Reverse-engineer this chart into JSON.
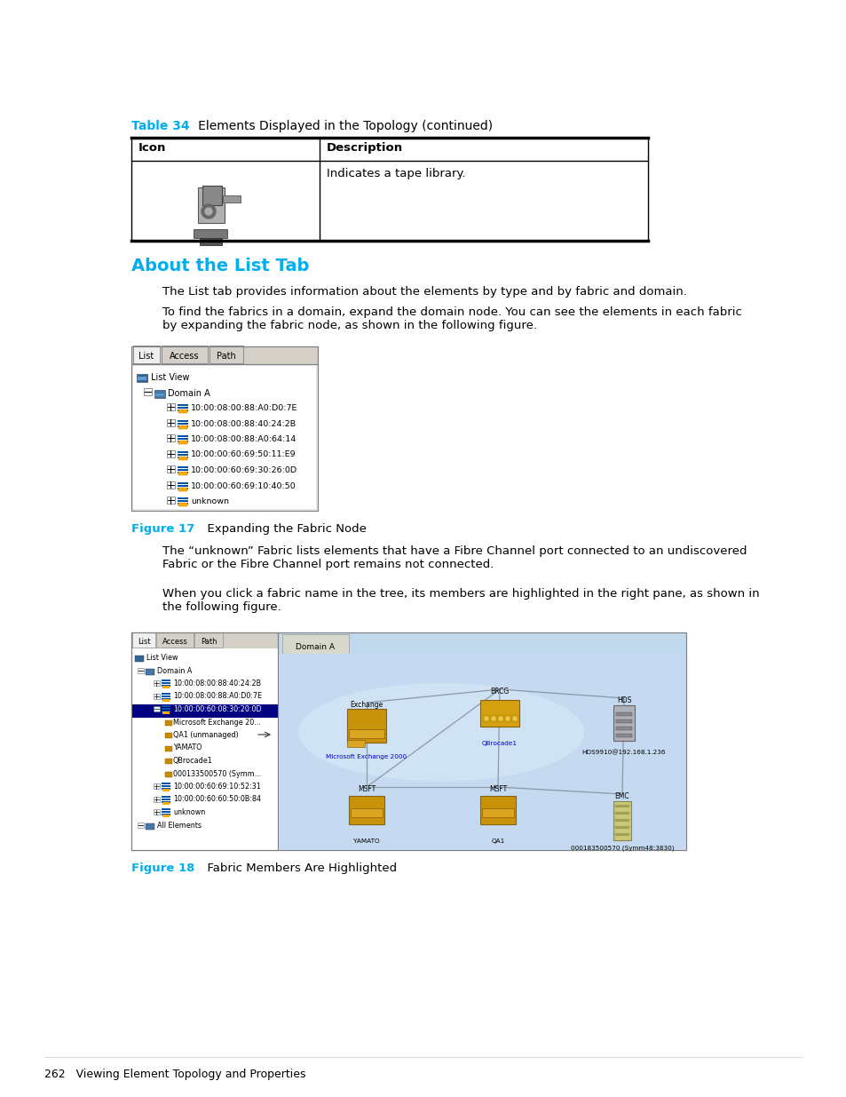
{
  "bg_color": "#ffffff",
  "cyan": "#00AEEF",
  "black": "#000000",
  "table_label": "Table 34",
  "table_title": "   Elements Displayed in the Topology (continued)",
  "table_header_icon": "Icon",
  "table_header_desc": "Description",
  "table_row_desc": "Indicates a tape library.",
  "section_title": "About the List Tab",
  "para1": "The List tab provides information about the elements by type and by fabric and domain.",
  "para2": "To find the fabrics in a domain, expand the domain node. You can see the elements in each fabric\nby expanding the fabric node, as shown in the following figure.",
  "fig17_caption_label": "Figure 17",
  "fig17_caption": "  Expanding the Fabric Node",
  "para3": "The “unknown” Fabric lists elements that have a Fibre Channel port connected to an undiscovered\nFabric or the Fibre Channel port remains not connected.",
  "para4": "When you click a fabric name in the tree, its members are highlighted in the right pane, as shown in\nthe following figure.",
  "fig18_caption_label": "Figure 18",
  "fig18_caption": "  Fabric Members Are Highlighted",
  "footer_text": "262   Viewing Element Topology and Properties",
  "tree17_items": [
    [
      0,
      "List View"
    ],
    [
      1,
      "Domain A"
    ],
    [
      2,
      "10:00:08:00:88:A0:D0:7E"
    ],
    [
      2,
      "10:00:08:00:88:40:24:2B"
    ],
    [
      2,
      "10:00:08:00:88:A0:64:14"
    ],
    [
      2,
      "10:00:00:60:69:50:11:E9"
    ],
    [
      2,
      "10:00:00:60:69:30:26:0D"
    ],
    [
      2,
      "10:00:00:60:69:10:40:50"
    ],
    [
      2,
      "unknown"
    ]
  ],
  "tree18_items": [
    [
      0,
      "List View",
      false
    ],
    [
      1,
      "Domain A",
      false
    ],
    [
      2,
      "10:00:08:00:88:40:24:2B",
      false
    ],
    [
      2,
      "10:00:08:00:88:A0:D0:7E",
      false
    ],
    [
      2,
      "10:00:00:60:08:30:20:0D",
      true
    ],
    [
      3,
      "Microsoft Exchange 20...",
      false
    ],
    [
      3,
      "QA1 (unmanaged)",
      false
    ],
    [
      3,
      "YAMATO",
      false
    ],
    [
      3,
      "QBrocade1",
      false
    ],
    [
      3,
      "000133500570 (Symm...",
      false
    ],
    [
      2,
      "10:00:00:60:69:10:52:31",
      false
    ],
    [
      2,
      "10:00:00:60:60:50:0B:84",
      false
    ],
    [
      2,
      "unknown",
      false
    ],
    [
      1,
      "All Elements",
      false
    ]
  ]
}
